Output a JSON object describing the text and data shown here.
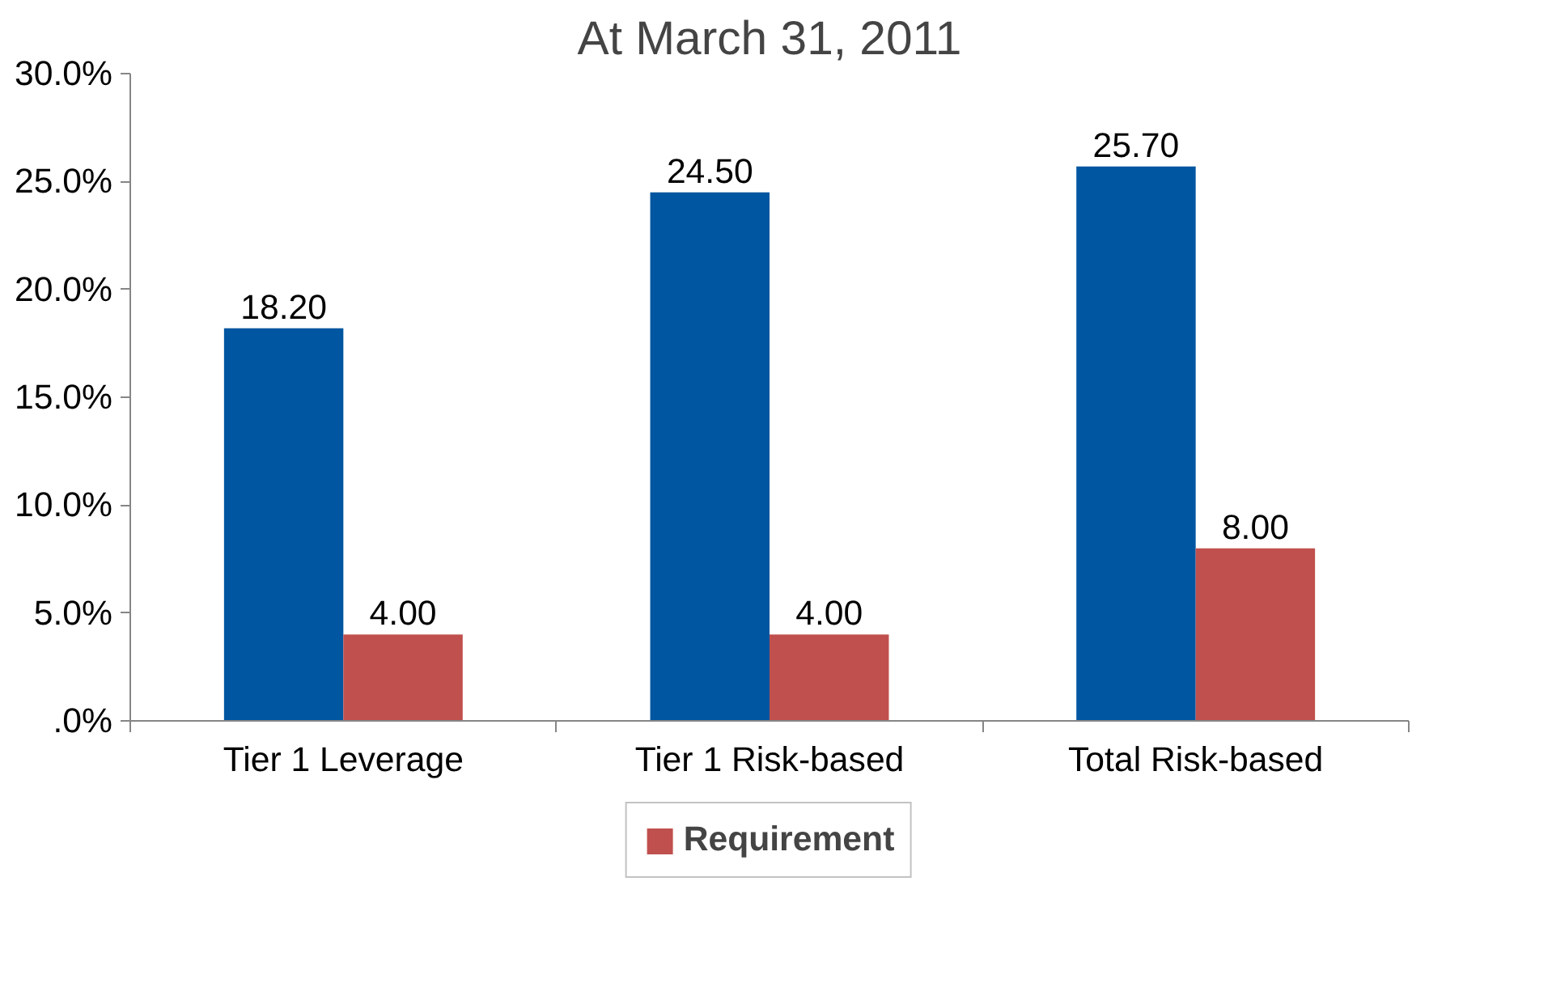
{
  "chart_data": {
    "type": "bar",
    "title": "At March 31, 2011",
    "categories": [
      "Tier 1 Leverage",
      "Tier 1 Risk-based",
      "Total Risk-based"
    ],
    "series": [
      {
        "color": "#0056a0",
        "values": [
          18.2,
          24.5,
          25.7
        ],
        "value_labels": [
          "18.20",
          "24.50",
          "25.70"
        ]
      },
      {
        "name": "Requirement",
        "color": "#c0504d",
        "values": [
          4.0,
          4.0,
          8.0
        ],
        "value_labels": [
          "4.00",
          "4.00",
          "8.00"
        ]
      }
    ],
    "ylim": [
      0,
      30
    ],
    "yticks": [
      {
        "value": 0,
        "label": ".0%"
      },
      {
        "value": 5,
        "label": "5.0%"
      },
      {
        "value": 10,
        "label": "10.0%"
      },
      {
        "value": 15,
        "label": "15.0%"
      },
      {
        "value": 20,
        "label": "20.0%"
      },
      {
        "value": 25,
        "label": "25.0%"
      },
      {
        "value": 30,
        "label": "30.0%"
      }
    ],
    "grid": false,
    "legend": "bottom"
  }
}
